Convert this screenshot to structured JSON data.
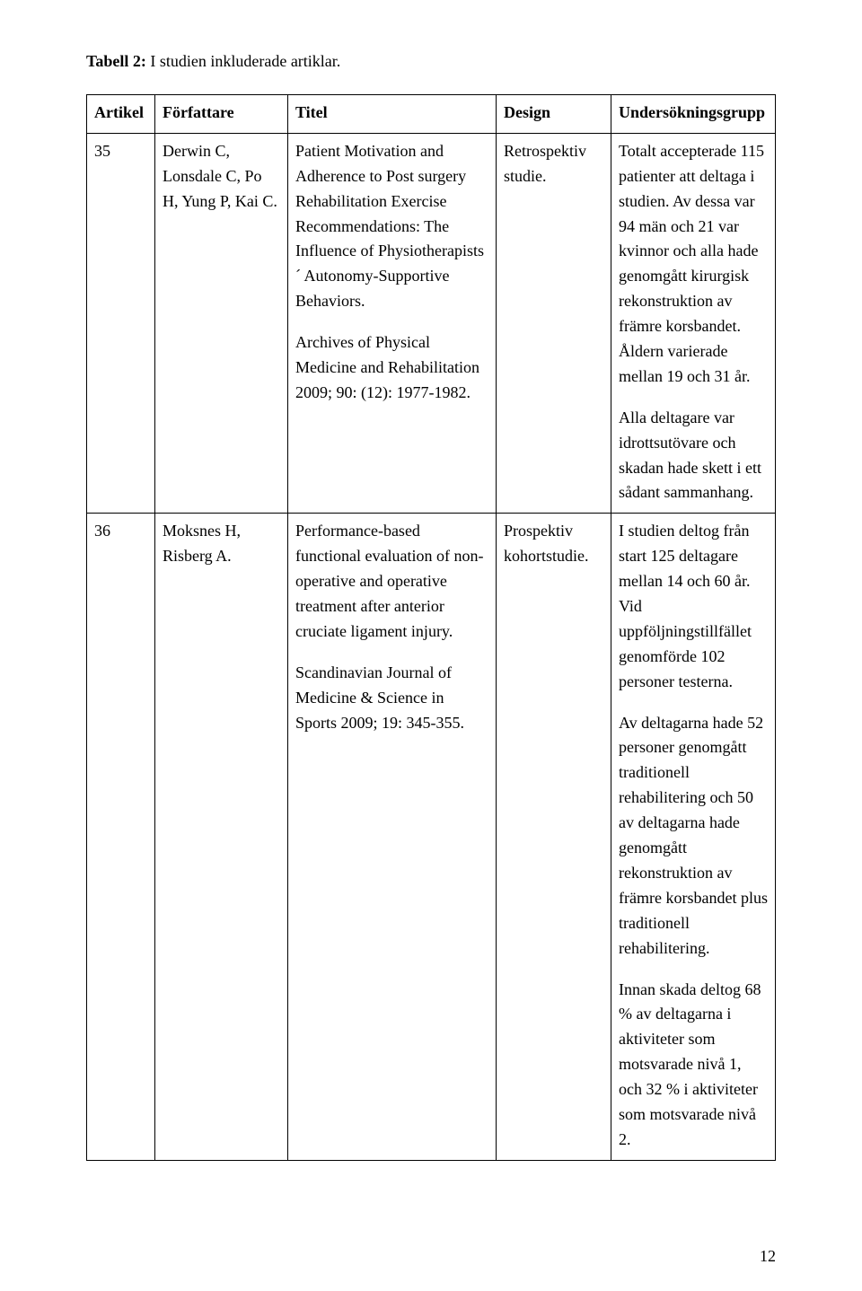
{
  "caption": {
    "label": "Tabell 2:",
    "text": " I studien inkluderade artiklar."
  },
  "headers": {
    "c1": "Artikel",
    "c2": "Författare",
    "c3": "Titel",
    "c4": "Design",
    "c5": "Undersökningsgrupp"
  },
  "rows": [
    {
      "artikel": "35",
      "forfattare": "Derwin C, Lonsdale C, Po H, Yung P, Kai C.",
      "titel_p1": "Patient Motivation and Adherence to Post surgery Rehabilitation Exercise Recommendations: The Influence of Physiotherapists´ Autonomy-Supportive Behaviors.",
      "titel_p2": "Archives of Physical Medicine and Rehabilitation 2009; 90: (12): 1977-1982.",
      "design": "Retrospektiv studie.",
      "undersok_p1": "Totalt accepterade 115 patienter att deltaga i studien. Av dessa var 94 män och 21 var kvinnor och alla hade genomgått kirurgisk rekonstruktion av främre korsbandet. Åldern varierade mellan 19 och 31 år.",
      "undersok_p2": "Alla deltagare var idrottsutövare och skadan hade skett i ett sådant sammanhang."
    },
    {
      "artikel": "36",
      "forfattare": "Moksnes H, Risberg A.",
      "titel_p1": "Performance-based functional evaluation of non-operative and operative treatment after anterior cruciate ligament injury.",
      "titel_p2": "Scandinavian Journal of Medicine & Science in Sports 2009; 19: 345-355.",
      "design": "Prospektiv kohortstudie.",
      "undersok_p1": "I studien deltog från start 125 deltagare mellan 14 och 60 år. Vid uppföljningstillfället genomförde 102 personer testerna.",
      "undersok_p2": "Av deltagarna hade 52 personer genomgått traditionell rehabilitering och 50 av deltagarna hade genomgått rekonstruktion av främre korsbandet plus traditionell rehabilitering.",
      "undersok_p3": "Innan skada deltog 68 % av deltagarna i aktiviteter som motsvarade nivå 1, och 32 % i aktiviteter som motsvarade nivå 2."
    }
  ],
  "page_number": "12"
}
